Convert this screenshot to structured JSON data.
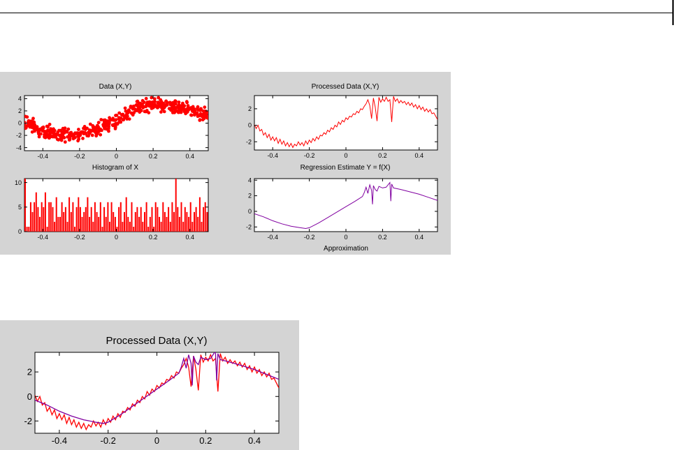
{
  "chart_data": [
    {
      "type": "scatter",
      "title": "Data (X,Y)",
      "xlim": [
        -0.5,
        0.5
      ],
      "ylim": [
        -4.5,
        4.5
      ],
      "xticks": [
        -0.4,
        -0.2,
        0,
        0.2,
        0.4
      ],
      "xtick_labels": [
        "-0.4",
        "-0.2",
        "0",
        "0.2",
        "0.4"
      ],
      "yticks": [
        -4,
        -2,
        0,
        2,
        4
      ],
      "ytick_labels": [
        "-4",
        "-2",
        "0",
        "2",
        "4"
      ],
      "marker_color": "#ff0000",
      "trend": {
        "x": [
          -0.5,
          -0.4,
          -0.3,
          -0.25,
          -0.2,
          -0.1,
          0,
          0.1,
          0.15,
          0.2,
          0.25,
          0.3,
          0.4,
          0.5
        ],
        "y": [
          0.2,
          -1.2,
          -2.0,
          -2.1,
          -1.9,
          -0.9,
          0.4,
          2.2,
          2.9,
          3.0,
          2.9,
          2.7,
          2.1,
          1.3
        ]
      },
      "noise_amplitude": 1.0
    },
    {
      "type": "bar",
      "title": "Histogram of X",
      "xlim": [
        -0.5,
        0.5
      ],
      "ylim": [
        0,
        10.8
      ],
      "xticks": [
        -0.4,
        -0.2,
        0,
        0.2,
        0.4
      ],
      "xtick_labels": [
        "-0.4",
        "-0.2",
        "0",
        "0.2",
        "0.4"
      ],
      "yticks": [
        0,
        5,
        10
      ],
      "ytick_labels": [
        "0",
        "5",
        "10"
      ],
      "bar_color": "#ff0000",
      "bin_start": -0.5,
      "bin_width": 0.01,
      "counts": [
        11,
        1,
        1,
        6,
        4,
        6,
        8,
        5,
        3,
        6,
        5,
        8,
        1,
        6,
        6,
        5,
        2,
        7,
        3,
        3,
        6,
        4,
        5,
        2,
        7,
        4,
        6,
        1,
        5,
        7,
        5,
        3,
        4,
        5,
        7,
        3,
        5,
        2,
        6,
        4,
        3,
        6,
        1,
        5,
        3,
        6,
        2,
        6,
        4,
        3,
        1,
        5,
        6,
        2,
        4,
        7,
        3,
        2,
        6,
        1,
        4,
        5,
        3,
        5,
        2,
        4,
        6,
        1,
        3,
        5,
        1,
        6,
        5,
        3,
        2,
        6,
        4,
        3,
        5,
        2,
        6,
        4,
        11,
        5,
        3,
        6,
        2,
        5,
        4,
        3,
        6,
        2,
        4,
        5,
        3,
        7,
        2,
        5,
        6,
        4
      ]
    },
    {
      "type": "line",
      "title": "Processed Data (X,Y)",
      "xlim": [
        -0.5,
        0.5
      ],
      "ylim": [
        -3.0,
        3.6
      ],
      "xticks": [
        -0.4,
        -0.2,
        0,
        0.2,
        0.4
      ],
      "xtick_labels": [
        "-0.4",
        "-0.2",
        "0",
        "0.2",
        "0.4"
      ],
      "yticks": [
        -2,
        0,
        2
      ],
      "ytick_labels": [
        "-2",
        "0",
        "2"
      ],
      "series": [
        {
          "color": "#ff0000",
          "x": [
            -0.5,
            -0.49,
            -0.48,
            -0.47,
            -0.46,
            -0.45,
            -0.44,
            -0.43,
            -0.42,
            -0.41,
            -0.4,
            -0.39,
            -0.38,
            -0.37,
            -0.36,
            -0.35,
            -0.34,
            -0.33,
            -0.32,
            -0.31,
            -0.3,
            -0.29,
            -0.28,
            -0.27,
            -0.26,
            -0.25,
            -0.24,
            -0.23,
            -0.22,
            -0.21,
            -0.2,
            -0.19,
            -0.18,
            -0.17,
            -0.16,
            -0.15,
            -0.14,
            -0.13,
            -0.12,
            -0.11,
            -0.1,
            -0.09,
            -0.08,
            -0.07,
            -0.06,
            -0.05,
            -0.04,
            -0.03,
            -0.02,
            -0.01,
            0.0,
            0.01,
            0.02,
            0.03,
            0.04,
            0.05,
            0.06,
            0.07,
            0.08,
            0.09,
            0.1,
            0.11,
            0.12,
            0.13,
            0.14,
            0.15,
            0.16,
            0.17,
            0.18,
            0.19,
            0.2,
            0.21,
            0.22,
            0.23,
            0.24,
            0.25,
            0.26,
            0.27,
            0.28,
            0.29,
            0.3,
            0.31,
            0.32,
            0.33,
            0.34,
            0.35,
            0.36,
            0.37,
            0.38,
            0.39,
            0.4,
            0.41,
            0.42,
            0.43,
            0.44,
            0.45,
            0.46,
            0.47,
            0.48,
            0.49,
            0.5
          ],
          "y": [
            0.1,
            -0.4,
            0.0,
            -0.7,
            -0.5,
            -1.2,
            -0.9,
            -1.5,
            -1.1,
            -1.8,
            -1.4,
            -1.9,
            -1.5,
            -2.2,
            -1.7,
            -2.3,
            -1.9,
            -2.5,
            -2.1,
            -2.6,
            -2.2,
            -2.7,
            -2.3,
            -2.5,
            -2.0,
            -2.4,
            -2.1,
            -2.5,
            -1.9,
            -2.3,
            -1.8,
            -2.1,
            -1.6,
            -1.9,
            -1.4,
            -1.7,
            -1.2,
            -1.3,
            -0.9,
            -1.1,
            -0.6,
            -0.8,
            -0.3,
            -0.5,
            0.0,
            -0.2,
            0.4,
            0.1,
            0.6,
            0.4,
            0.9,
            0.7,
            1.1,
            1.0,
            1.4,
            1.3,
            1.7,
            1.5,
            2.0,
            1.9,
            2.3,
            2.6,
            3.1,
            2.4,
            0.8,
            3.3,
            2.2,
            0.5,
            3.4,
            2.8,
            3.2,
            2.9,
            3.4,
            2.9,
            3.1,
            0.4,
            3.5,
            2.9,
            3.2,
            2.7,
            3.0,
            2.7,
            2.9,
            2.5,
            2.8,
            2.4,
            2.7,
            2.2,
            2.5,
            2.0,
            2.4,
            1.9,
            2.2,
            1.7,
            2.0,
            1.6,
            1.9,
            1.4,
            1.5,
            1.1,
            0.7
          ]
        }
      ]
    },
    {
      "type": "line",
      "title": "Regression Estimate Y = f(X)",
      "xlabel": "Approximation",
      "xlim": [
        -0.5,
        0.5
      ],
      "ylim": [
        -2.6,
        4.2
      ],
      "xticks": [
        -0.4,
        -0.2,
        0,
        0.2,
        0.4
      ],
      "xtick_labels": [
        "-0.4",
        "-0.2",
        "0",
        "0.2",
        "0.4"
      ],
      "yticks": [
        -2,
        0,
        2,
        4
      ],
      "ytick_labels": [
        "-2",
        "0",
        "2",
        "4"
      ],
      "series": [
        {
          "color": "#8000a0",
          "x": [
            -0.5,
            -0.45,
            -0.4,
            -0.35,
            -0.3,
            -0.25,
            -0.22,
            -0.2,
            -0.15,
            -0.1,
            -0.05,
            0.0,
            0.05,
            0.09,
            0.1,
            0.11,
            0.12,
            0.13,
            0.14,
            0.145,
            0.15,
            0.16,
            0.17,
            0.18,
            0.2,
            0.22,
            0.24,
            0.245,
            0.25,
            0.26,
            0.28,
            0.3,
            0.35,
            0.4,
            0.45,
            0.5
          ],
          "y": [
            -0.3,
            -0.7,
            -1.2,
            -1.6,
            -1.9,
            -2.1,
            -2.2,
            -2.1,
            -1.5,
            -0.8,
            -0.1,
            0.6,
            1.3,
            1.9,
            2.4,
            3.1,
            2.3,
            3.4,
            2.7,
            0.9,
            3.3,
            2.8,
            2.6,
            3.2,
            3.0,
            3.1,
            3.7,
            1.3,
            3.5,
            3.0,
            2.9,
            2.8,
            2.5,
            2.2,
            1.8,
            1.4
          ]
        }
      ]
    },
    {
      "type": "line",
      "title": "Processed Data (X,Y)",
      "xlim": [
        -0.5,
        0.5
      ],
      "ylim": [
        -3.0,
        3.6
      ],
      "xticks": [
        -0.4,
        -0.2,
        0,
        0.2,
        0.4
      ],
      "xtick_labels": [
        "-0.4",
        "-0.2",
        "0",
        "0.2",
        "0.4"
      ],
      "yticks": [
        -2,
        0,
        2
      ],
      "ytick_labels": [
        "-2",
        "0",
        "2"
      ],
      "series": [
        {
          "color": "#ff0000",
          "x": [
            -0.5,
            -0.49,
            -0.48,
            -0.47,
            -0.46,
            -0.45,
            -0.44,
            -0.43,
            -0.42,
            -0.41,
            -0.4,
            -0.39,
            -0.38,
            -0.37,
            -0.36,
            -0.35,
            -0.34,
            -0.33,
            -0.32,
            -0.31,
            -0.3,
            -0.29,
            -0.28,
            -0.27,
            -0.26,
            -0.25,
            -0.24,
            -0.23,
            -0.22,
            -0.21,
            -0.2,
            -0.19,
            -0.18,
            -0.17,
            -0.16,
            -0.15,
            -0.14,
            -0.13,
            -0.12,
            -0.11,
            -0.1,
            -0.09,
            -0.08,
            -0.07,
            -0.06,
            -0.05,
            -0.04,
            -0.03,
            -0.02,
            -0.01,
            0.0,
            0.01,
            0.02,
            0.03,
            0.04,
            0.05,
            0.06,
            0.07,
            0.08,
            0.09,
            0.1,
            0.11,
            0.12,
            0.13,
            0.14,
            0.15,
            0.16,
            0.17,
            0.18,
            0.19,
            0.2,
            0.21,
            0.22,
            0.23,
            0.24,
            0.25,
            0.26,
            0.27,
            0.28,
            0.29,
            0.3,
            0.31,
            0.32,
            0.33,
            0.34,
            0.35,
            0.36,
            0.37,
            0.38,
            0.39,
            0.4,
            0.41,
            0.42,
            0.43,
            0.44,
            0.45,
            0.46,
            0.47,
            0.48,
            0.49,
            0.5
          ],
          "y": [
            0.1,
            -0.4,
            0.0,
            -0.7,
            -0.5,
            -1.2,
            -0.9,
            -1.5,
            -1.1,
            -1.8,
            -1.4,
            -1.9,
            -1.5,
            -2.2,
            -1.7,
            -2.3,
            -1.9,
            -2.5,
            -2.1,
            -2.6,
            -2.2,
            -2.7,
            -2.3,
            -2.5,
            -2.0,
            -2.4,
            -2.1,
            -2.5,
            -1.9,
            -2.3,
            -1.8,
            -2.1,
            -1.6,
            -1.9,
            -1.4,
            -1.7,
            -1.2,
            -1.3,
            -0.9,
            -1.1,
            -0.6,
            -0.8,
            -0.3,
            -0.5,
            0.0,
            -0.2,
            0.4,
            0.1,
            0.6,
            0.4,
            0.9,
            0.7,
            1.1,
            1.0,
            1.4,
            1.3,
            1.7,
            1.5,
            2.0,
            1.9,
            2.3,
            2.6,
            3.1,
            2.4,
            0.8,
            3.3,
            2.2,
            0.5,
            3.4,
            2.8,
            3.2,
            2.9,
            3.4,
            2.9,
            3.1,
            0.4,
            3.5,
            2.9,
            3.2,
            2.7,
            3.0,
            2.7,
            2.9,
            2.5,
            2.8,
            2.4,
            2.7,
            2.2,
            2.5,
            2.0,
            2.4,
            1.9,
            2.2,
            1.7,
            2.0,
            1.6,
            1.9,
            1.4,
            1.5,
            1.1,
            0.7
          ]
        },
        {
          "color": "#8000a0",
          "x": [
            -0.5,
            -0.45,
            -0.4,
            -0.35,
            -0.3,
            -0.25,
            -0.22,
            -0.2,
            -0.15,
            -0.1,
            -0.05,
            0.0,
            0.05,
            0.09,
            0.1,
            0.11,
            0.12,
            0.13,
            0.14,
            0.145,
            0.15,
            0.16,
            0.17,
            0.18,
            0.2,
            0.22,
            0.24,
            0.245,
            0.25,
            0.26,
            0.28,
            0.3,
            0.35,
            0.4,
            0.45,
            0.5
          ],
          "y": [
            -0.3,
            -0.7,
            -1.2,
            -1.6,
            -1.9,
            -2.1,
            -2.2,
            -2.1,
            -1.5,
            -0.8,
            -0.1,
            0.6,
            1.3,
            1.9,
            2.4,
            3.1,
            2.3,
            3.4,
            2.7,
            0.9,
            3.3,
            2.8,
            2.6,
            3.2,
            3.0,
            3.1,
            3.7,
            1.3,
            3.5,
            3.0,
            2.9,
            2.8,
            2.5,
            2.2,
            1.8,
            1.4
          ]
        }
      ]
    }
  ]
}
